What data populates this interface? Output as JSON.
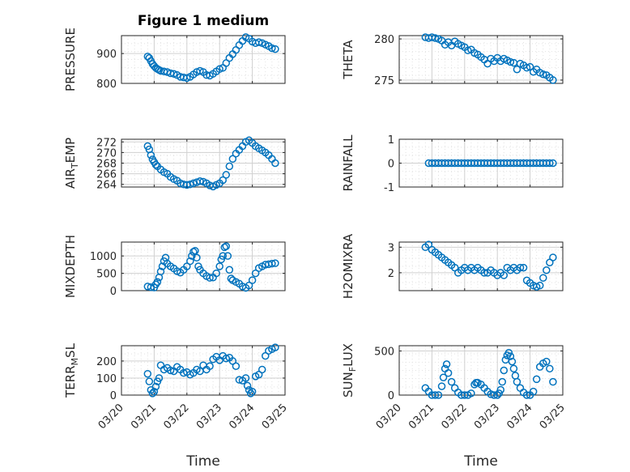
{
  "chart_data": {
    "type": "scatter",
    "title": "Figure 1 medium",
    "xlabel": "Time",
    "x_ticks": [
      "03/20",
      "03/21",
      "03/22",
      "03/23",
      "03/24",
      "03/25"
    ],
    "marker_color": "#0072BD",
    "subplots": [
      {
        "ylabel": "PRESSURE",
        "yticks": [
          800,
          900
        ],
        "ylim": [
          800,
          960
        ],
        "x": [
          20.8,
          20.85,
          20.9,
          20.95,
          21.0,
          21.05,
          21.1,
          21.15,
          21.2,
          21.3,
          21.4,
          21.5,
          21.6,
          21.7,
          21.8,
          21.9,
          22.0,
          22.1,
          22.2,
          22.3,
          22.4,
          22.5,
          22.6,
          22.7,
          22.8,
          22.9,
          23.0,
          23.1,
          23.2,
          23.3,
          23.4,
          23.5,
          23.6,
          23.7,
          23.8,
          23.9,
          24.0,
          24.1,
          24.2,
          24.3,
          24.4,
          24.5,
          24.6,
          24.7
        ],
        "y": [
          890,
          885,
          875,
          865,
          858,
          852,
          848,
          845,
          842,
          840,
          838,
          834,
          832,
          828,
          822,
          820,
          818,
          822,
          830,
          838,
          842,
          838,
          828,
          826,
          832,
          840,
          848,
          852,
          868,
          885,
          898,
          912,
          928,
          942,
          955,
          950,
          940,
          935,
          938,
          935,
          930,
          925,
          918,
          915
        ]
      },
      {
        "ylabel": "THETA",
        "yticks": [
          275,
          280
        ],
        "ylim": [
          274.6,
          280.4
        ],
        "x": [
          20.8,
          20.9,
          21.0,
          21.1,
          21.2,
          21.3,
          21.4,
          21.5,
          21.6,
          21.7,
          21.8,
          21.9,
          22.0,
          22.1,
          22.2,
          22.3,
          22.4,
          22.5,
          22.6,
          22.7,
          22.8,
          22.9,
          23.0,
          23.1,
          23.2,
          23.3,
          23.4,
          23.5,
          23.6,
          23.7,
          23.8,
          23.9,
          24.0,
          24.1,
          24.2,
          24.3,
          24.4,
          24.5,
          24.6,
          24.7
        ],
        "y": [
          280.2,
          280.1,
          280.2,
          280.1,
          280.0,
          279.8,
          279.3,
          279.6,
          279.2,
          279.7,
          279.4,
          279.2,
          279.0,
          278.6,
          278.7,
          278.3,
          278.1,
          277.8,
          277.5,
          277.0,
          277.6,
          277.3,
          277.7,
          277.3,
          277.6,
          277.4,
          277.2,
          277.1,
          276.3,
          277.0,
          276.8,
          276.5,
          276.6,
          276.0,
          276.3,
          275.9,
          275.7,
          275.6,
          275.3,
          275.0
        ]
      },
      {
        "ylabel": "AIR_TEMP",
        "yticks": [
          264,
          266,
          268,
          270,
          272
        ],
        "ylim": [
          263.5,
          272.5
        ],
        "x": [
          20.8,
          20.85,
          20.9,
          20.95,
          21.0,
          21.05,
          21.1,
          21.2,
          21.3,
          21.4,
          21.5,
          21.6,
          21.7,
          21.8,
          21.9,
          22.0,
          22.1,
          22.2,
          22.3,
          22.4,
          22.5,
          22.6,
          22.7,
          22.8,
          22.9,
          23.0,
          23.1,
          23.2,
          23.3,
          23.4,
          23.5,
          23.6,
          23.7,
          23.8,
          23.9,
          24.0,
          24.1,
          24.2,
          24.3,
          24.4,
          24.5,
          24.6,
          24.7
        ],
        "y": [
          271.2,
          270.6,
          269.5,
          268.7,
          268.2,
          267.7,
          267.4,
          266.8,
          266.3,
          266.0,
          265.4,
          265.0,
          264.7,
          264.2,
          264.0,
          263.9,
          264.0,
          264.2,
          264.4,
          264.6,
          264.5,
          264.2,
          263.8,
          263.6,
          263.9,
          264.2,
          264.8,
          265.8,
          267.4,
          268.8,
          269.8,
          270.5,
          271.2,
          272.0,
          272.3,
          271.8,
          271.2,
          270.8,
          270.4,
          270.0,
          269.5,
          268.8,
          268.0
        ]
      },
      {
        "ylabel": "RAINFALL",
        "yticks": [
          -1,
          0,
          1
        ],
        "ylim": [
          -1,
          1
        ],
        "x": [
          20.9,
          21.0,
          21.1,
          21.2,
          21.3,
          21.4,
          21.5,
          21.6,
          21.7,
          21.8,
          21.9,
          22.0,
          22.1,
          22.2,
          22.3,
          22.4,
          22.5,
          22.6,
          22.7,
          22.8,
          22.9,
          23.0,
          23.1,
          23.2,
          23.3,
          23.4,
          23.5,
          23.6,
          23.7,
          23.8,
          23.9,
          24.0,
          24.1,
          24.2,
          24.3,
          24.4,
          24.5,
          24.6,
          24.7
        ],
        "y": [
          0,
          0,
          0,
          0,
          0,
          0,
          0,
          0,
          0,
          0,
          0,
          0,
          0,
          0,
          0,
          0,
          0,
          0,
          0,
          0,
          0,
          0,
          0,
          0,
          0,
          0,
          0,
          0,
          0,
          0,
          0,
          0,
          0,
          0,
          0,
          0,
          0,
          0,
          0
        ]
      },
      {
        "ylabel": "MIXDEPTH",
        "yticks": [
          0,
          500,
          1000
        ],
        "ylim": [
          0,
          1400
        ],
        "x": [
          20.8,
          20.9,
          21.0,
          21.05,
          21.1,
          21.15,
          21.2,
          21.25,
          21.3,
          21.35,
          21.4,
          21.5,
          21.6,
          21.7,
          21.8,
          21.9,
          22.0,
          22.1,
          22.15,
          22.2,
          22.25,
          22.3,
          22.35,
          22.4,
          22.5,
          22.6,
          22.7,
          22.8,
          22.9,
          23.0,
          23.05,
          23.1,
          23.15,
          23.2,
          23.25,
          23.3,
          23.35,
          23.4,
          23.5,
          23.6,
          23.7,
          23.8,
          23.9,
          24.0,
          24.1,
          24.2,
          24.3,
          24.4,
          24.5,
          24.6,
          24.7
        ],
        "y": [
          120,
          100,
          90,
          180,
          250,
          380,
          550,
          700,
          850,
          950,
          780,
          700,
          640,
          560,
          520,
          600,
          700,
          850,
          1000,
          1120,
          1150,
          950,
          700,
          600,
          500,
          420,
          370,
          380,
          500,
          700,
          900,
          1000,
          1250,
          1280,
          1000,
          600,
          350,
          300,
          250,
          200,
          120,
          80,
          150,
          300,
          500,
          650,
          700,
          750,
          760,
          780,
          790
        ]
      },
      {
        "ylabel": "H2OMIXRA",
        "yticks": [
          2,
          3
        ],
        "ylim": [
          1.3,
          3.2
        ],
        "x": [
          20.8,
          20.9,
          21.0,
          21.1,
          21.2,
          21.3,
          21.4,
          21.5,
          21.6,
          21.7,
          21.8,
          21.9,
          22.0,
          22.1,
          22.2,
          22.3,
          22.4,
          22.5,
          22.6,
          22.7,
          22.8,
          22.9,
          23.0,
          23.1,
          23.2,
          23.3,
          23.4,
          23.5,
          23.6,
          23.7,
          23.8,
          23.9,
          24.0,
          24.1,
          24.2,
          24.3,
          24.4,
          24.5,
          24.6,
          24.7
        ],
        "y": [
          3.0,
          3.1,
          2.9,
          2.8,
          2.7,
          2.6,
          2.5,
          2.4,
          2.3,
          2.2,
          2.0,
          2.1,
          2.2,
          2.1,
          2.2,
          2.1,
          2.2,
          2.1,
          2.0,
          2.0,
          2.1,
          2.0,
          1.9,
          2.0,
          1.9,
          2.2,
          2.1,
          2.2,
          2.1,
          2.2,
          2.2,
          1.7,
          1.6,
          1.5,
          1.45,
          1.5,
          1.8,
          2.1,
          2.4,
          2.6
        ]
      },
      {
        "ylabel": "TERR_MSL",
        "yticks": [
          0,
          100,
          200
        ],
        "ylim": [
          0,
          290
        ],
        "x": [
          20.8,
          20.85,
          20.9,
          20.95,
          21.0,
          21.05,
          21.1,
          21.15,
          21.2,
          21.3,
          21.4,
          21.5,
          21.6,
          21.7,
          21.8,
          21.9,
          22.0,
          22.1,
          22.2,
          22.3,
          22.4,
          22.5,
          22.6,
          22.7,
          22.8,
          22.9,
          23.0,
          23.1,
          23.2,
          23.3,
          23.4,
          23.5,
          23.6,
          23.7,
          23.8,
          23.85,
          23.9,
          23.95,
          24.0,
          24.1,
          24.2,
          24.3,
          24.4,
          24.5,
          24.6,
          24.7
        ],
        "y": [
          125,
          80,
          30,
          10,
          20,
          50,
          80,
          100,
          175,
          150,
          160,
          145,
          140,
          165,
          150,
          130,
          135,
          120,
          130,
          150,
          140,
          175,
          150,
          170,
          210,
          225,
          205,
          230,
          215,
          220,
          200,
          170,
          90,
          85,
          100,
          55,
          30,
          10,
          20,
          110,
          120,
          150,
          230,
          260,
          270,
          280
        ]
      },
      {
        "ylabel": "SUN_FLUX",
        "yticks": [
          0,
          500
        ],
        "ylim": [
          0,
          560
        ],
        "x": [
          20.8,
          20.9,
          21.0,
          21.1,
          21.2,
          21.3,
          21.35,
          21.4,
          21.45,
          21.5,
          21.6,
          21.7,
          21.8,
          21.9,
          22.0,
          22.1,
          22.2,
          22.3,
          22.35,
          22.4,
          22.5,
          22.6,
          22.7,
          22.8,
          22.9,
          23.0,
          23.05,
          23.1,
          23.15,
          23.2,
          23.25,
          23.3,
          23.35,
          23.4,
          23.45,
          23.5,
          23.55,
          23.6,
          23.7,
          23.8,
          23.9,
          24.0,
          24.1,
          24.2,
          24.3,
          24.4,
          24.5,
          24.6,
          24.7
        ],
        "y": [
          80,
          40,
          0,
          0,
          0,
          100,
          200,
          300,
          350,
          250,
          150,
          80,
          30,
          0,
          0,
          0,
          20,
          120,
          140,
          140,
          120,
          80,
          40,
          10,
          0,
          0,
          20,
          60,
          150,
          280,
          400,
          450,
          480,
          440,
          380,
          300,
          220,
          150,
          80,
          30,
          0,
          0,
          40,
          180,
          320,
          360,
          380,
          300,
          150
        ]
      }
    ]
  }
}
